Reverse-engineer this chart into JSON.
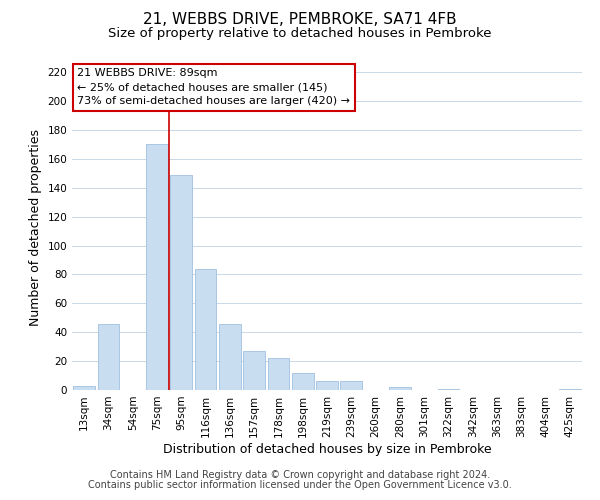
{
  "title": "21, WEBBS DRIVE, PEMBROKE, SA71 4FB",
  "subtitle": "Size of property relative to detached houses in Pembroke",
  "xlabel": "Distribution of detached houses by size in Pembroke",
  "ylabel": "Number of detached properties",
  "bar_color": "#c8ddf0",
  "bar_edge_color": "#a0c0e0",
  "vline_color": "#cc0000",
  "annotation_title": "21 WEBBS DRIVE: 89sqm",
  "annotation_line1": "← 25% of detached houses are smaller (145)",
  "annotation_line2": "73% of semi-detached houses are larger (420) →",
  "annotation_box_color": "#ffffff",
  "annotation_box_edge": "#cc0000",
  "categories": [
    "13sqm",
    "34sqm",
    "54sqm",
    "75sqm",
    "95sqm",
    "116sqm",
    "136sqm",
    "157sqm",
    "178sqm",
    "198sqm",
    "219sqm",
    "239sqm",
    "260sqm",
    "280sqm",
    "301sqm",
    "322sqm",
    "342sqm",
    "363sqm",
    "383sqm",
    "404sqm",
    "425sqm"
  ],
  "values": [
    3,
    46,
    0,
    170,
    149,
    84,
    46,
    27,
    22,
    12,
    6,
    6,
    0,
    2,
    0,
    1,
    0,
    0,
    0,
    0,
    1
  ],
  "ylim": [
    0,
    225
  ],
  "yticks": [
    0,
    20,
    40,
    60,
    80,
    100,
    120,
    140,
    160,
    180,
    200,
    220
  ],
  "footer_line1": "Contains HM Land Registry data © Crown copyright and database right 2024.",
  "footer_line2": "Contains public sector information licensed under the Open Government Licence v3.0.",
  "bg_color": "#ffffff",
  "grid_color": "#c8d8e8",
  "title_fontsize": 11,
  "subtitle_fontsize": 9.5,
  "axis_label_fontsize": 9,
  "tick_fontsize": 7.5,
  "annotation_fontsize": 8,
  "footer_fontsize": 7
}
